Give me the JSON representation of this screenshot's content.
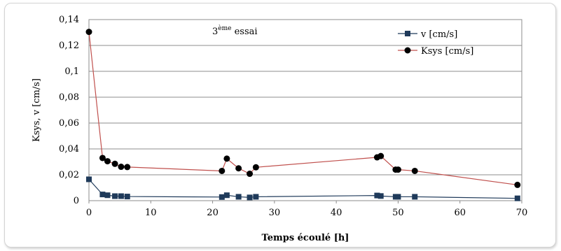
{
  "chart_data": {
    "type": "line",
    "xlabel": "Temps écoulé [h]",
    "ylabel": "Ksys, v [cm/s]",
    "xlim": [
      0,
      70
    ],
    "ylim": [
      0,
      0.14
    ],
    "x_ticks": [
      "0",
      "10",
      "20",
      "30",
      "40",
      "50",
      "60",
      "70"
    ],
    "y_ticks": [
      "0",
      "0,02",
      "0,04",
      "0,06",
      "0,08",
      "0,1",
      "0,12",
      "0,14"
    ],
    "grid": "horizontal",
    "legend_position": "top-right",
    "annotation": {
      "main": "3",
      "sup": "ème",
      "rest": " essai"
    },
    "series": [
      {
        "name": "v [cm/s]",
        "color": "#1f3a5a",
        "marker": "square",
        "x": [
          0,
          2.2,
          3.0,
          4.2,
          5.2,
          6.2,
          21.5,
          22.3,
          24.2,
          26.0,
          27.0,
          46.6,
          47.2,
          49.6,
          50.0,
          52.7,
          69.3
        ],
        "y": [
          0.0165,
          0.0048,
          0.0042,
          0.0035,
          0.0035,
          0.0032,
          0.0028,
          0.0042,
          0.003,
          0.0025,
          0.003,
          0.004,
          0.0036,
          0.003,
          0.003,
          0.003,
          0.0018
        ]
      },
      {
        "name": "Ksys [cm/s]",
        "color": "#c0504d",
        "marker": "circle",
        "x": [
          0,
          2.2,
          3.0,
          4.2,
          5.2,
          6.2,
          21.5,
          22.3,
          24.2,
          26.0,
          27.0,
          46.6,
          47.2,
          49.6,
          50.0,
          52.7,
          69.3
        ],
        "y": [
          0.1305,
          0.033,
          0.0305,
          0.0285,
          0.0262,
          0.026,
          0.023,
          0.0325,
          0.025,
          0.0208,
          0.0258,
          0.0335,
          0.0345,
          0.024,
          0.024,
          0.023,
          0.0122
        ]
      }
    ]
  }
}
